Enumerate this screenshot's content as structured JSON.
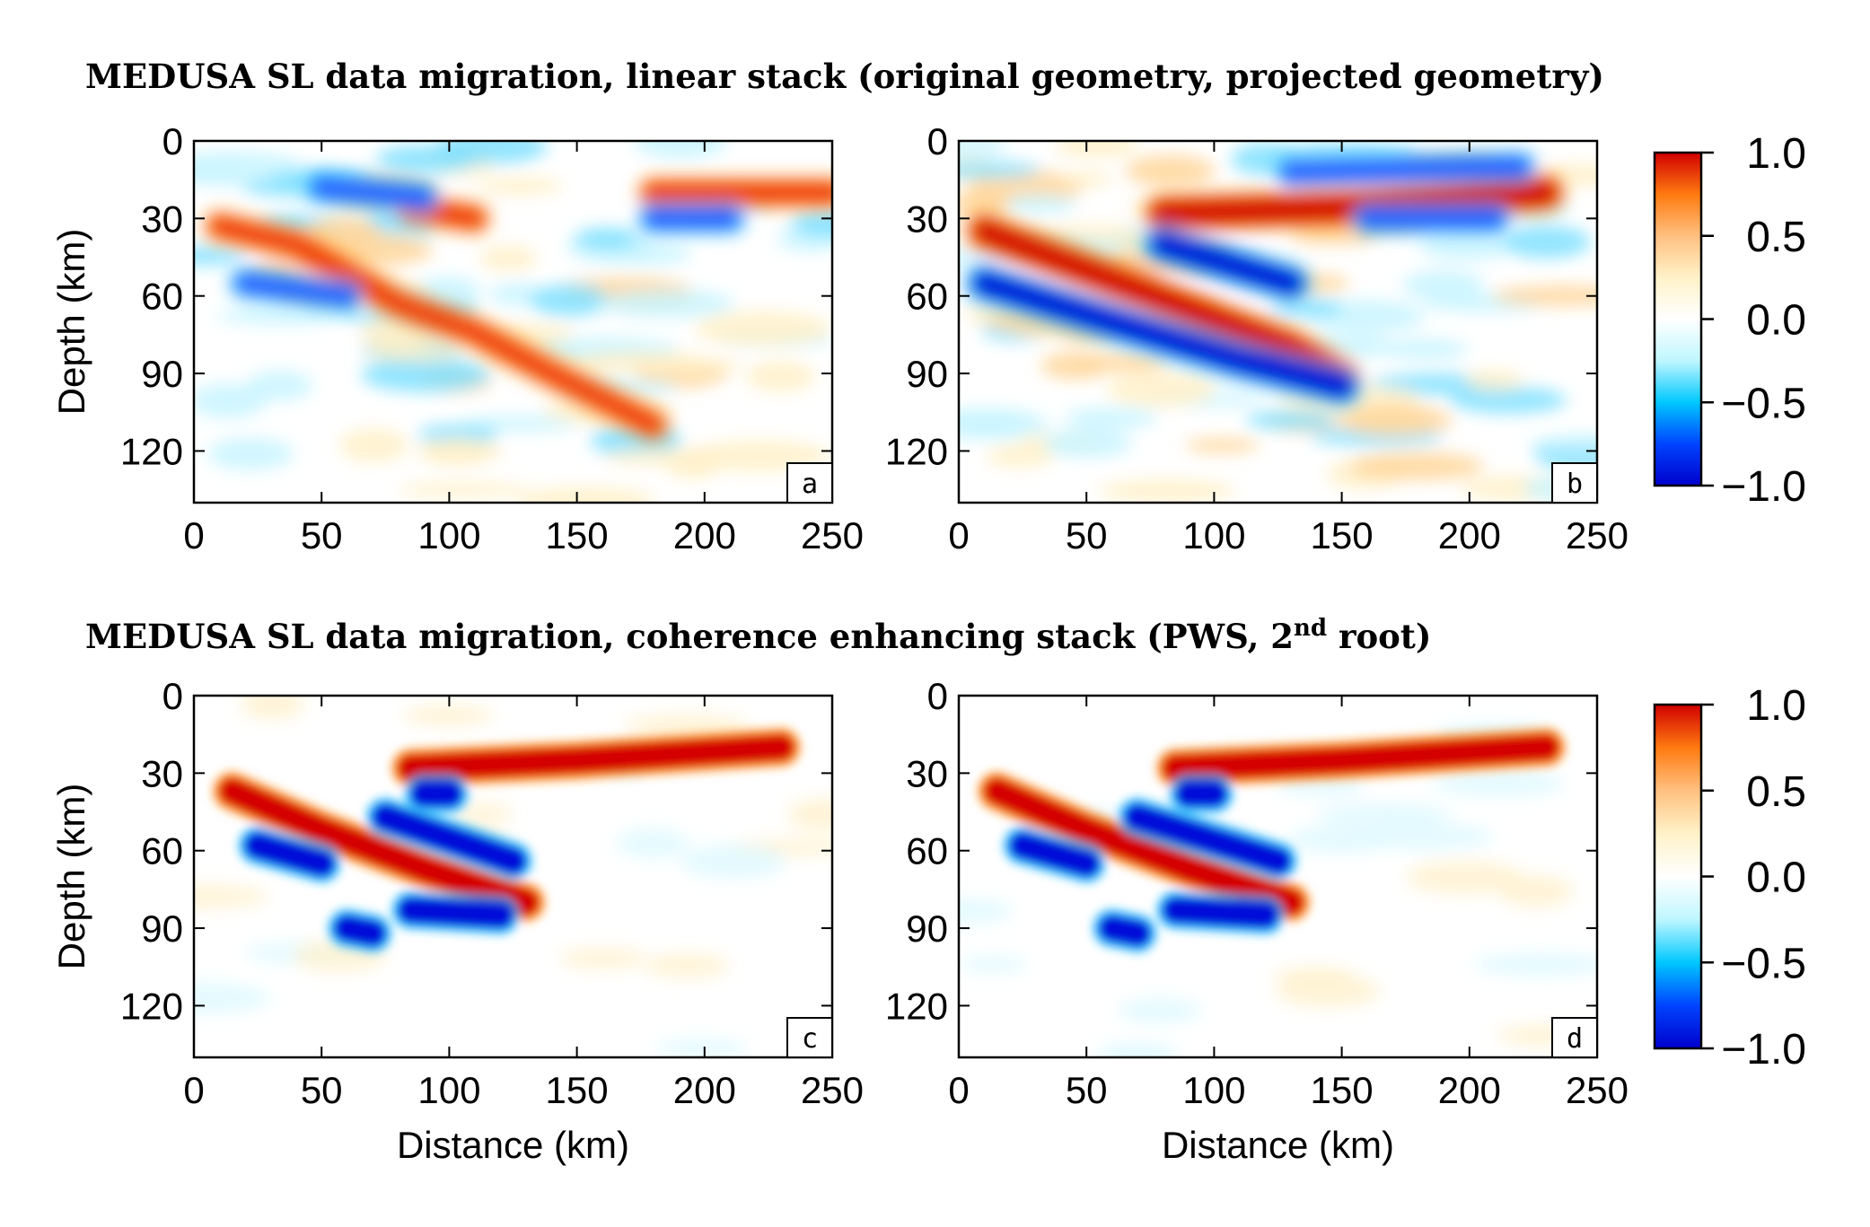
{
  "titles": {
    "top": "MEDUSA SL data migration, linear stack (original geometry, projected geometry)",
    "bottom_pre": "MEDUSA SL data migration, coherence enhancing stack (PWS, 2",
    "bottom_sup": "nd",
    "bottom_post": " root)"
  },
  "colors": {
    "colormap": [
      "#0000cc",
      "#0044ff",
      "#00c8ff",
      "#bff6ff",
      "#ffffff",
      "#fff2c8",
      "#ffc080",
      "#ff7a10",
      "#d00000"
    ],
    "frame": "#000000"
  },
  "chart_data": [
    {
      "type": "heatmap",
      "panel": "a",
      "xlabel": "",
      "ylabel": "Depth (km)",
      "xlim": [
        0,
        250
      ],
      "ylim": [
        140,
        0
      ],
      "xticks": [
        "0",
        "50",
        "100",
        "150",
        "200",
        "250"
      ],
      "yticks": [
        "0",
        "30",
        "60",
        "90",
        "120"
      ],
      "features": [
        {
          "kind": "positive",
          "path": [
            [
              10,
              33
            ],
            [
              40,
              40
            ],
            [
              80,
              63
            ],
            [
              110,
              74
            ],
            [
              140,
              90
            ],
            [
              180,
              110
            ]
          ],
          "amplitude": 0.8
        },
        {
          "kind": "positive",
          "path": [
            [
              85,
              26
            ],
            [
              110,
              30
            ]
          ],
          "amplitude": 0.7
        },
        {
          "kind": "positive",
          "path": [
            [
              180,
              20
            ],
            [
              250,
              20
            ]
          ],
          "amplitude": 0.7
        },
        {
          "kind": "negative",
          "path": [
            [
              20,
              55
            ],
            [
              60,
              60
            ]
          ],
          "amplitude": 0.8
        },
        {
          "kind": "negative",
          "path": [
            [
              50,
              18
            ],
            [
              90,
              22
            ]
          ],
          "amplitude": 0.6
        },
        {
          "kind": "negative",
          "path": [
            [
              180,
              30
            ],
            [
              210,
              30
            ]
          ],
          "amplitude": 0.7
        }
      ]
    },
    {
      "type": "heatmap",
      "panel": "b",
      "xlabel": "",
      "ylabel": "",
      "xlim": [
        0,
        250
      ],
      "ylim": [
        140,
        0
      ],
      "xticks": [
        "0",
        "50",
        "100",
        "150",
        "200",
        "250"
      ],
      "yticks": [
        "0",
        "30",
        "60",
        "90",
        "120"
      ],
      "features": [
        {
          "kind": "positive",
          "path": [
            [
              10,
              35
            ],
            [
              50,
              50
            ],
            [
              90,
              65
            ],
            [
              130,
              80
            ],
            [
              150,
              92
            ]
          ],
          "amplitude": 1.0
        },
        {
          "kind": "positive",
          "path": [
            [
              80,
              28
            ],
            [
              150,
              26
            ],
            [
              230,
              20
            ]
          ],
          "amplitude": 1.0
        },
        {
          "kind": "negative",
          "path": [
            [
              10,
              55
            ],
            [
              60,
              70
            ],
            [
              110,
              85
            ],
            [
              150,
              95
            ]
          ],
          "amplitude": 0.9
        },
        {
          "kind": "negative",
          "path": [
            [
              80,
              40
            ],
            [
              130,
              55
            ]
          ],
          "amplitude": 0.9
        },
        {
          "kind": "negative",
          "path": [
            [
              130,
              12
            ],
            [
              220,
              10
            ]
          ],
          "amplitude": 0.8
        },
        {
          "kind": "negative",
          "path": [
            [
              160,
              30
            ],
            [
              210,
              30
            ]
          ],
          "amplitude": 0.8
        }
      ]
    },
    {
      "type": "heatmap",
      "panel": "c",
      "xlabel": "Distance (km)",
      "ylabel": "Depth (km)",
      "xlim": [
        0,
        250
      ],
      "ylim": [
        140,
        0
      ],
      "xticks": [
        "0",
        "50",
        "100",
        "150",
        "200",
        "250"
      ],
      "yticks": [
        "0",
        "30",
        "60",
        "90",
        "120"
      ],
      "features": [
        {
          "kind": "positive",
          "path": [
            [
              15,
              37
            ],
            [
              50,
              52
            ],
            [
              90,
              67
            ],
            [
              130,
              80
            ]
          ],
          "amplitude": 1.0
        },
        {
          "kind": "positive",
          "path": [
            [
              85,
              28
            ],
            [
              150,
              25
            ],
            [
              230,
              20
            ]
          ],
          "amplitude": 1.0
        },
        {
          "kind": "negative",
          "path": [
            [
              25,
              58
            ],
            [
              50,
              65
            ]
          ],
          "amplitude": 1.0
        },
        {
          "kind": "negative",
          "path": [
            [
              75,
              47
            ],
            [
              125,
              64
            ]
          ],
          "amplitude": 1.0
        },
        {
          "kind": "negative",
          "path": [
            [
              85,
              83
            ],
            [
              120,
              85
            ]
          ],
          "amplitude": 1.0
        },
        {
          "kind": "negative",
          "path": [
            [
              60,
              90
            ],
            [
              70,
              92
            ]
          ],
          "amplitude": 0.9
        },
        {
          "kind": "negative",
          "path": [
            [
              90,
              38
            ],
            [
              100,
              38
            ]
          ],
          "amplitude": 0.9
        }
      ]
    },
    {
      "type": "heatmap",
      "panel": "d",
      "xlabel": "Distance (km)",
      "ylabel": "",
      "xlim": [
        0,
        250
      ],
      "ylim": [
        140,
        0
      ],
      "xticks": [
        "0",
        "50",
        "100",
        "150",
        "200",
        "250"
      ],
      "yticks": [
        "0",
        "30",
        "60",
        "90",
        "120"
      ],
      "features": [
        {
          "kind": "positive",
          "path": [
            [
              15,
              37
            ],
            [
              50,
              52
            ],
            [
              90,
              67
            ],
            [
              130,
              80
            ]
          ],
          "amplitude": 1.0
        },
        {
          "kind": "positive",
          "path": [
            [
              85,
              28
            ],
            [
              150,
              25
            ],
            [
              230,
              20
            ]
          ],
          "amplitude": 1.0
        },
        {
          "kind": "negative",
          "path": [
            [
              25,
              58
            ],
            [
              50,
              65
            ]
          ],
          "amplitude": 1.0
        },
        {
          "kind": "negative",
          "path": [
            [
              70,
              47
            ],
            [
              125,
              64
            ]
          ],
          "amplitude": 1.0
        },
        {
          "kind": "negative",
          "path": [
            [
              85,
              83
            ],
            [
              120,
              85
            ]
          ],
          "amplitude": 1.0
        },
        {
          "kind": "negative",
          "path": [
            [
              60,
              90
            ],
            [
              70,
              92
            ]
          ],
          "amplitude": 0.9
        },
        {
          "kind": "negative",
          "path": [
            [
              90,
              38
            ],
            [
              100,
              38
            ]
          ],
          "amplitude": 0.9
        }
      ]
    }
  ],
  "colorbar": {
    "ticks": [
      "1.0",
      "0.5",
      "0.0",
      "−0.5",
      "−1.0"
    ],
    "range": [
      -1.0,
      1.0
    ]
  }
}
